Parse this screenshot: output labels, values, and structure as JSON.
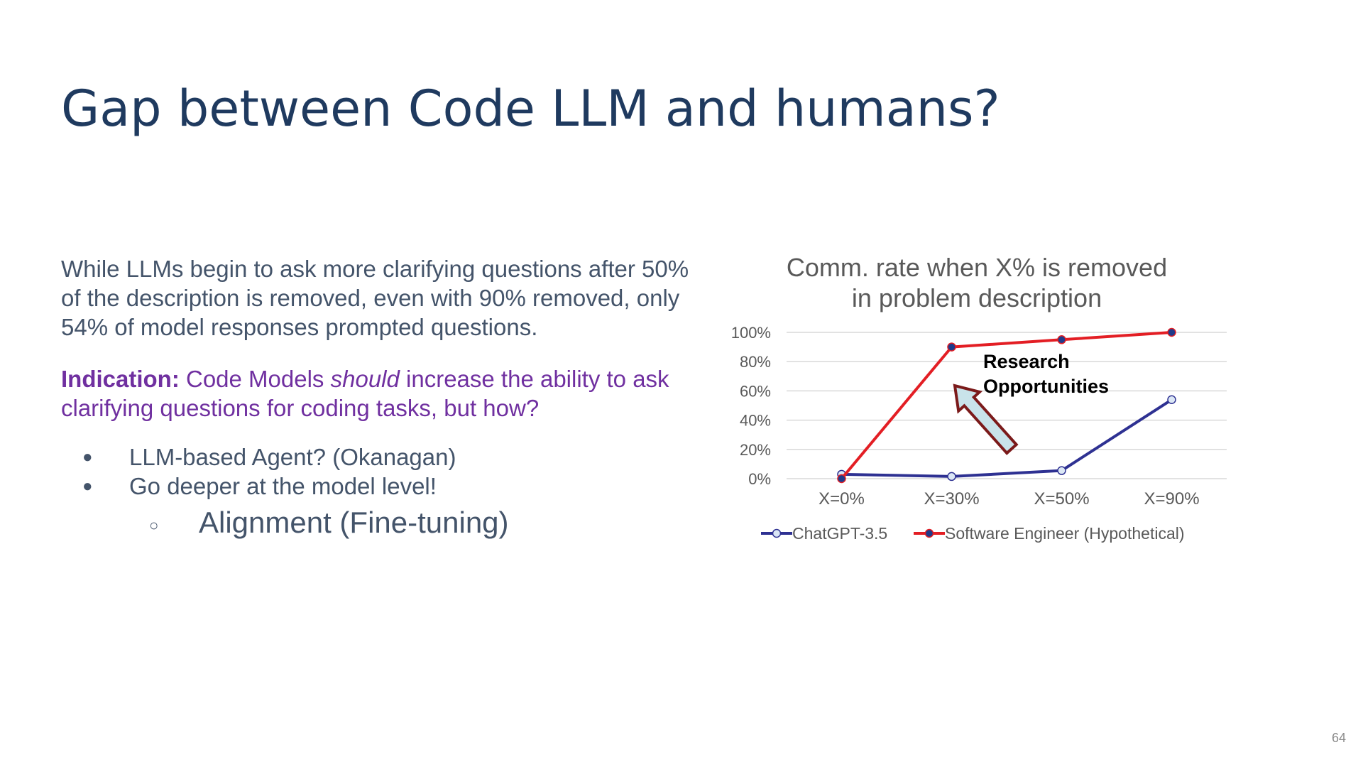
{
  "slide": {
    "title": "Gap between Code LLM and humans?",
    "paragraph": "While LLMs begin to ask more clarifying questions after 50% of the description is removed, even with 90% removed, only 54% of model responses prompted questions.",
    "indication_label": "Indication:",
    "indication_pre": " Code Models ",
    "indication_em": "should",
    "indication_post": " increase the ability to ask clarifying questions for coding tasks, but how?",
    "bullets": [
      "LLM-based Agent? (Okanagan)",
      "Go deeper at the model level!"
    ],
    "sub_bullets": [
      "Alignment (Fine-tuning)"
    ],
    "bullet_symbol": "●",
    "sub_bullet_symbol": "○",
    "page_number": "64"
  },
  "chart_data": {
    "type": "line",
    "title_lines": [
      "Comm. rate when X% is removed",
      "in problem description"
    ],
    "categories": [
      "X=0%",
      "X=30%",
      "X=50%",
      "X=90%"
    ],
    "y_tick_labels": [
      "0%",
      "20%",
      "40%",
      "60%",
      "80%",
      "100%"
    ],
    "ylim": [
      0,
      100
    ],
    "grid": true,
    "legend_position": "bottom",
    "series": [
      {
        "name": "ChatGPT-3.5",
        "values": [
          3,
          1.5,
          5.5,
          54
        ],
        "color": "#2e3192",
        "marker_fill": "#dbe7f5"
      },
      {
        "name": "Software Engineer (Hypothetical)",
        "values": [
          0,
          90,
          95,
          100
        ],
        "color": "#e31e24",
        "marker_fill": "#1f3a8a"
      }
    ],
    "annotation": {
      "lines": [
        "Research",
        "Opportunities"
      ],
      "arrow_color": "#7b1a1a",
      "arrow_fill": "#c9e3ea"
    }
  },
  "colors": {
    "title": "#1f3a5f",
    "body": "#44546a",
    "indication": "#7030a0",
    "grid": "#d9d9d9",
    "axis_text": "#595959"
  }
}
